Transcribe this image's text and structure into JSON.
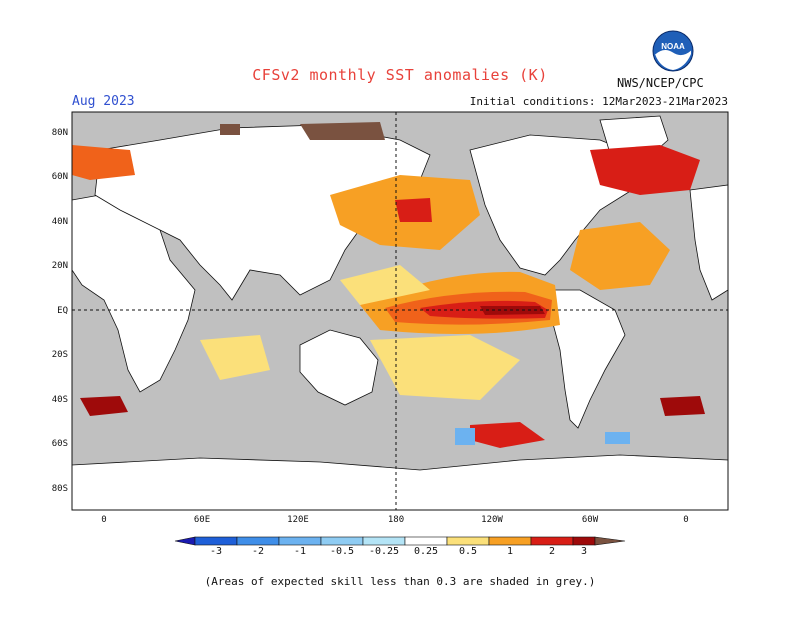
{
  "title": "CFSv2 monthly SST anomalies (K)",
  "valid_month": "Aug 2023",
  "initial_conditions": "Initial conditions: 12Mar2023-21Mar2023",
  "agency": "NWS/NCEP/CPC",
  "logo_text": "NOAA",
  "footnote": "(Areas of expected skill less than 0.3 are shaded in grey.)",
  "lat_labels": [
    "80N",
    "60N",
    "40N",
    "20N",
    "EQ",
    "20S",
    "40S",
    "60S",
    "80S"
  ],
  "lon_labels": [
    "0",
    "60E",
    "120E",
    "180",
    "120W",
    "60W",
    "0"
  ],
  "colorbar": {
    "ticks": [
      "-3",
      "-2",
      "-1",
      "-0.5",
      "-0.25",
      "0.25",
      "0.5",
      "1",
      "2",
      "3"
    ],
    "colors": [
      "#1a1ab0",
      "#1e5fd8",
      "#3f8ee8",
      "#6cb2f0",
      "#b4e4f6",
      "#ffffff",
      "#fbe07a",
      "#f7a024",
      "#f0621a",
      "#d81e16",
      "#9e0a0a",
      "#7a5240"
    ],
    "grey_mask": "#c0c0c0"
  },
  "colors": {
    "land": "#ffffff",
    "low_skill": "#c0c0c0",
    "title": "#e8413a",
    "month": "#3050d0"
  }
}
